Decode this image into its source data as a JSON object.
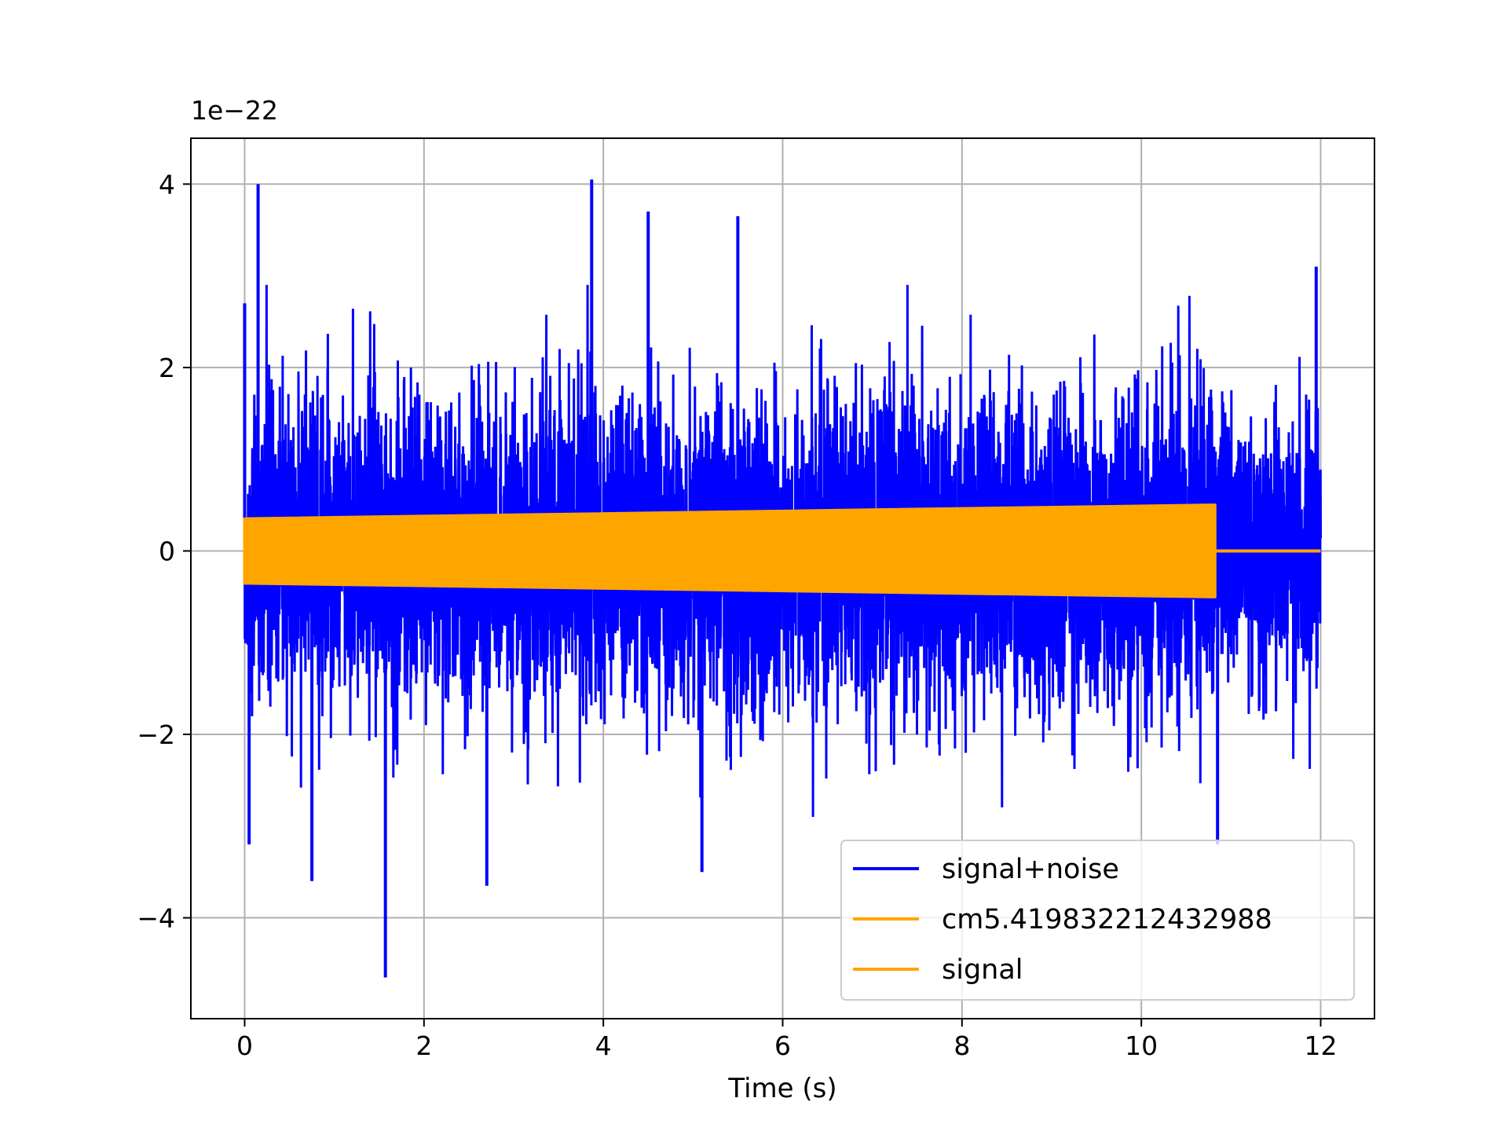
{
  "chart_data": {
    "type": "line",
    "title": "",
    "xlabel": "Time (s)",
    "ylabel": "",
    "offset_text": "1e−22",
    "xlim": [
      -0.6,
      12.6
    ],
    "ylim": [
      -5.1,
      4.5
    ],
    "x_ticks": [
      0,
      2,
      4,
      6,
      8,
      10,
      12
    ],
    "x_tick_labels": [
      "0",
      "2",
      "4",
      "6",
      "8",
      "10",
      "12"
    ],
    "y_ticks": [
      -4,
      -2,
      0,
      2,
      4
    ],
    "y_tick_labels": [
      "−4",
      "−2",
      "0",
      "2",
      "4"
    ],
    "grid": true,
    "legend_position": "lower-right",
    "series": [
      {
        "name": "signal+noise",
        "color": "#0000ff",
        "x_range": [
          0,
          12
        ],
        "typical_amplitude": 1.5,
        "peaks_positive": [
          [
            0.15,
            4.0
          ],
          [
            3.87,
            4.05
          ],
          [
            4.5,
            3.7
          ],
          [
            5.5,
            3.65
          ],
          [
            0.0,
            2.7
          ],
          [
            11.95,
            3.1
          ]
        ],
        "peaks_negative": [
          [
            1.57,
            -4.65
          ],
          [
            2.7,
            -3.65
          ],
          [
            0.75,
            -3.6
          ],
          [
            5.1,
            -3.5
          ],
          [
            0.05,
            -3.2
          ],
          [
            10.85,
            -3.2
          ]
        ]
      },
      {
        "name": "cm5.419832212432988",
        "color": "#ffa500",
        "x_range": [
          0,
          10.82
        ],
        "envelope_start": 0.35,
        "envelope_end": 0.5
      },
      {
        "name": "signal",
        "color": "#ffa500",
        "x_range": [
          0,
          12
        ],
        "chirp_end": 10.82,
        "envelope_start": 0.35,
        "envelope_end": 0.5
      }
    ]
  }
}
